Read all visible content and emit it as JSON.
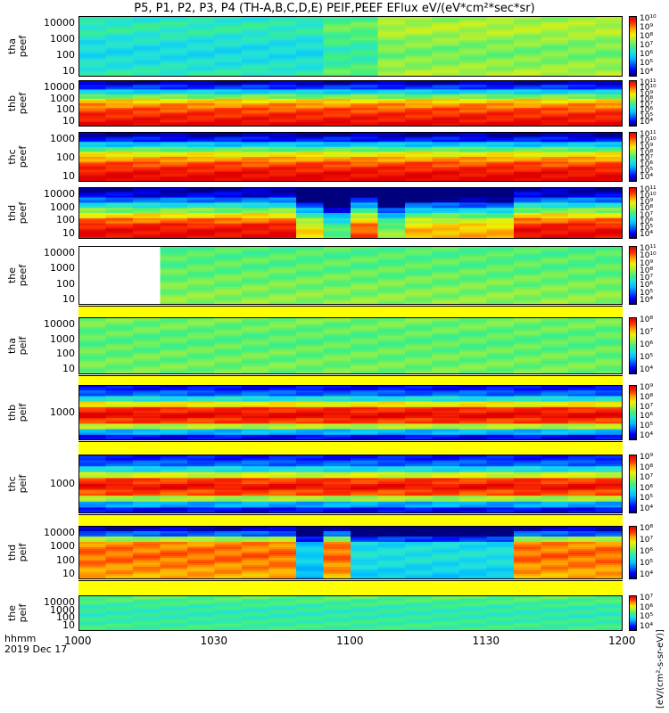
{
  "title": "P5, P1, P2, P3, P4 (TH-A,B,C,D,E) PEIF,PEEF EFlux eV/(eV*cm²*sec*sr)",
  "x_axis": {
    "ticks": [
      "1000",
      "1030",
      "1100",
      "1130",
      "1200"
    ],
    "label_top": "hhmm",
    "label_bottom": "2019 Dec 17"
  },
  "colorbar_unit_label": "[eV/(cm²-s-sr-eV)]",
  "chart_data": [
    {
      "type": "heatmap",
      "probe": "tha",
      "ylabel_line1": "tha",
      "ylabel_line2": "peef",
      "yticks": [
        "10",
        "100",
        "1000",
        "10000"
      ],
      "cbar_ticks": [
        "10⁴",
        "10⁵",
        "10⁶",
        "10⁷",
        "10⁸",
        "10⁹",
        "10¹⁰"
      ],
      "profile": [
        0.45,
        0.42,
        0.4,
        0.38,
        0.38,
        0.4,
        0.42,
        0.45,
        0.45,
        0.42
      ],
      "segments": [
        {
          "from": 0,
          "to": 9,
          "shift": 0
        },
        {
          "from": 9,
          "to": 11,
          "shift": 0.08
        },
        {
          "from": 11,
          "to": 20,
          "shift": 0.17
        }
      ],
      "gap_until": 0
    },
    {
      "type": "heatmap",
      "probe": "thb",
      "ylabel_line1": "thb",
      "ylabel_line2": "peef",
      "yticks": [
        "10",
        "100",
        "1000",
        "10000"
      ],
      "cbar_ticks": [
        "10⁴",
        "10⁵",
        "10⁶",
        "10⁷",
        "10⁸",
        "10⁹",
        "10¹⁰",
        "10¹¹"
      ],
      "profile": [
        1.0,
        0.95,
        0.92,
        0.88,
        0.82,
        0.74,
        0.55,
        0.35,
        0.15,
        0.05
      ],
      "segments": [
        {
          "from": 0,
          "to": 20,
          "shift": 0
        }
      ],
      "gap_until": 0
    },
    {
      "type": "heatmap",
      "probe": "thc",
      "ylabel_line1": "thc",
      "ylabel_line2": "peef",
      "yticks": [
        "10",
        "100",
        "1000"
      ],
      "cbar_ticks": [
        "10⁴",
        "10⁵",
        "10⁶",
        "10⁷",
        "10⁸",
        "10⁹",
        "10¹⁰",
        "10¹¹"
      ],
      "profile": [
        1.0,
        0.97,
        0.93,
        0.88,
        0.8,
        0.7,
        0.52,
        0.32,
        0.12,
        0.03
      ],
      "segments": [
        {
          "from": 0,
          "to": 20,
          "shift": 0
        }
      ],
      "gap_until": 0
    },
    {
      "type": "heatmap",
      "probe": "thd",
      "ylabel_line1": "thd",
      "ylabel_line2": "peef",
      "yticks": [
        "10",
        "100",
        "1000",
        "10000"
      ],
      "cbar_ticks": [
        "10⁴",
        "10⁵",
        "10⁶",
        "10⁷",
        "10⁸",
        "10⁹",
        "10¹⁰",
        "10¹¹"
      ],
      "profile": [
        0.98,
        0.97,
        0.93,
        0.85,
        0.72,
        0.56,
        0.4,
        0.22,
        0.08,
        0.03
      ],
      "segments": [
        {
          "from": 0,
          "to": 8,
          "shift": 0
        },
        {
          "from": 8,
          "to": 9,
          "shift": -0.25
        },
        {
          "from": 9,
          "to": 10,
          "shift": -0.45
        },
        {
          "from": 10,
          "to": 11,
          "shift": -0.1
        },
        {
          "from": 11,
          "to": 12,
          "shift": -0.4
        },
        {
          "from": 12,
          "to": 16,
          "shift": -0.2
        },
        {
          "from": 16,
          "to": 20,
          "shift": 0
        }
      ],
      "gap_until": 0
    },
    {
      "type": "heatmap",
      "probe": "the",
      "ylabel_line1": "the",
      "ylabel_line2": "peef",
      "yticks": [
        "10",
        "100",
        "1000",
        "10000"
      ],
      "cbar_ticks": [
        "10⁴",
        "10⁵",
        "10⁶",
        "10⁷",
        "10⁸",
        "10⁹",
        "10¹⁰",
        "10¹¹"
      ],
      "profile": [
        0.58,
        0.57,
        0.56,
        0.55,
        0.54,
        0.53,
        0.52,
        0.52,
        0.51,
        0.51
      ],
      "segments": [
        {
          "from": 0,
          "to": 20,
          "shift": 0
        }
      ],
      "gap_until": 2.5
    },
    {
      "type": "heatmap",
      "probe": "tha",
      "ylabel_line1": "tha",
      "ylabel_line2": "peif",
      "yticks": [
        "10",
        "100",
        "1000",
        "10000"
      ],
      "cbar_ticks": [
        "10⁴",
        "10⁵",
        "10⁶",
        "10⁷",
        "10⁸"
      ],
      "profile": [
        0.55,
        0.55,
        0.54,
        0.54,
        0.53,
        0.52,
        0.52,
        0.53,
        0.54,
        0.55
      ],
      "segments": [
        {
          "from": 0,
          "to": 20,
          "shift": 0
        }
      ],
      "gap_until": 0
    },
    {
      "type": "heatmap",
      "probe": "thb",
      "ylabel_line1": "thb",
      "ylabel_line2": "peif",
      "yticks": [
        "1000"
      ],
      "cbar_ticks": [
        "10⁴",
        "10⁵",
        "10⁶",
        "10⁷",
        "10⁸",
        "10⁹"
      ],
      "profile": [
        0.1,
        0.3,
        0.62,
        0.9,
        0.98,
        0.92,
        0.7,
        0.4,
        0.2,
        0.1
      ],
      "segments": [
        {
          "from": 0,
          "to": 20,
          "shift": 0
        }
      ],
      "gap_until": 0
    },
    {
      "type": "heatmap",
      "probe": "thc",
      "ylabel_line1": "thc",
      "ylabel_line2": "peif",
      "yticks": [
        "1000"
      ],
      "cbar_ticks": [
        "10⁴",
        "10⁵",
        "10⁶",
        "10⁷",
        "10⁸",
        "10⁹"
      ],
      "profile": [
        0.1,
        0.28,
        0.6,
        0.88,
        0.96,
        0.9,
        0.66,
        0.38,
        0.2,
        0.12
      ],
      "segments": [
        {
          "from": 0,
          "to": 20,
          "shift": 0
        }
      ],
      "gap_until": 0
    },
    {
      "type": "heatmap",
      "probe": "thd",
      "ylabel_line1": "thd",
      "ylabel_line2": "peif",
      "yticks": [
        "10",
        "100",
        "1000",
        "10000"
      ],
      "cbar_ticks": [
        "10⁴",
        "10⁵",
        "10⁶",
        "10⁷",
        "10⁸"
      ],
      "profile": [
        0.78,
        0.8,
        0.82,
        0.84,
        0.85,
        0.84,
        0.82,
        0.6,
        0.2,
        0.05
      ],
      "segments": [
        {
          "from": 0,
          "to": 8,
          "shift": 0
        },
        {
          "from": 8,
          "to": 9,
          "shift": -0.5
        },
        {
          "from": 9,
          "to": 10,
          "shift": 0
        },
        {
          "from": 10,
          "to": 16,
          "shift": -0.45
        },
        {
          "from": 16,
          "to": 20,
          "shift": 0
        }
      ],
      "gap_until": 0
    },
    {
      "type": "heatmap",
      "probe": "the",
      "ylabel_line1": "the",
      "ylabel_line2": "peif",
      "yticks": [
        "10",
        "100",
        "1000",
        "10000"
      ],
      "cbar_ticks": [
        "10⁴",
        "10⁵",
        "10⁶",
        "10⁷"
      ],
      "profile": [
        0.48,
        0.48,
        0.47,
        0.46,
        0.45,
        0.45,
        0.46,
        0.48,
        0.5,
        0.52
      ],
      "segments": [
        {
          "from": 0,
          "to": 20,
          "shift": 0
        }
      ],
      "gap_until": 0
    }
  ]
}
